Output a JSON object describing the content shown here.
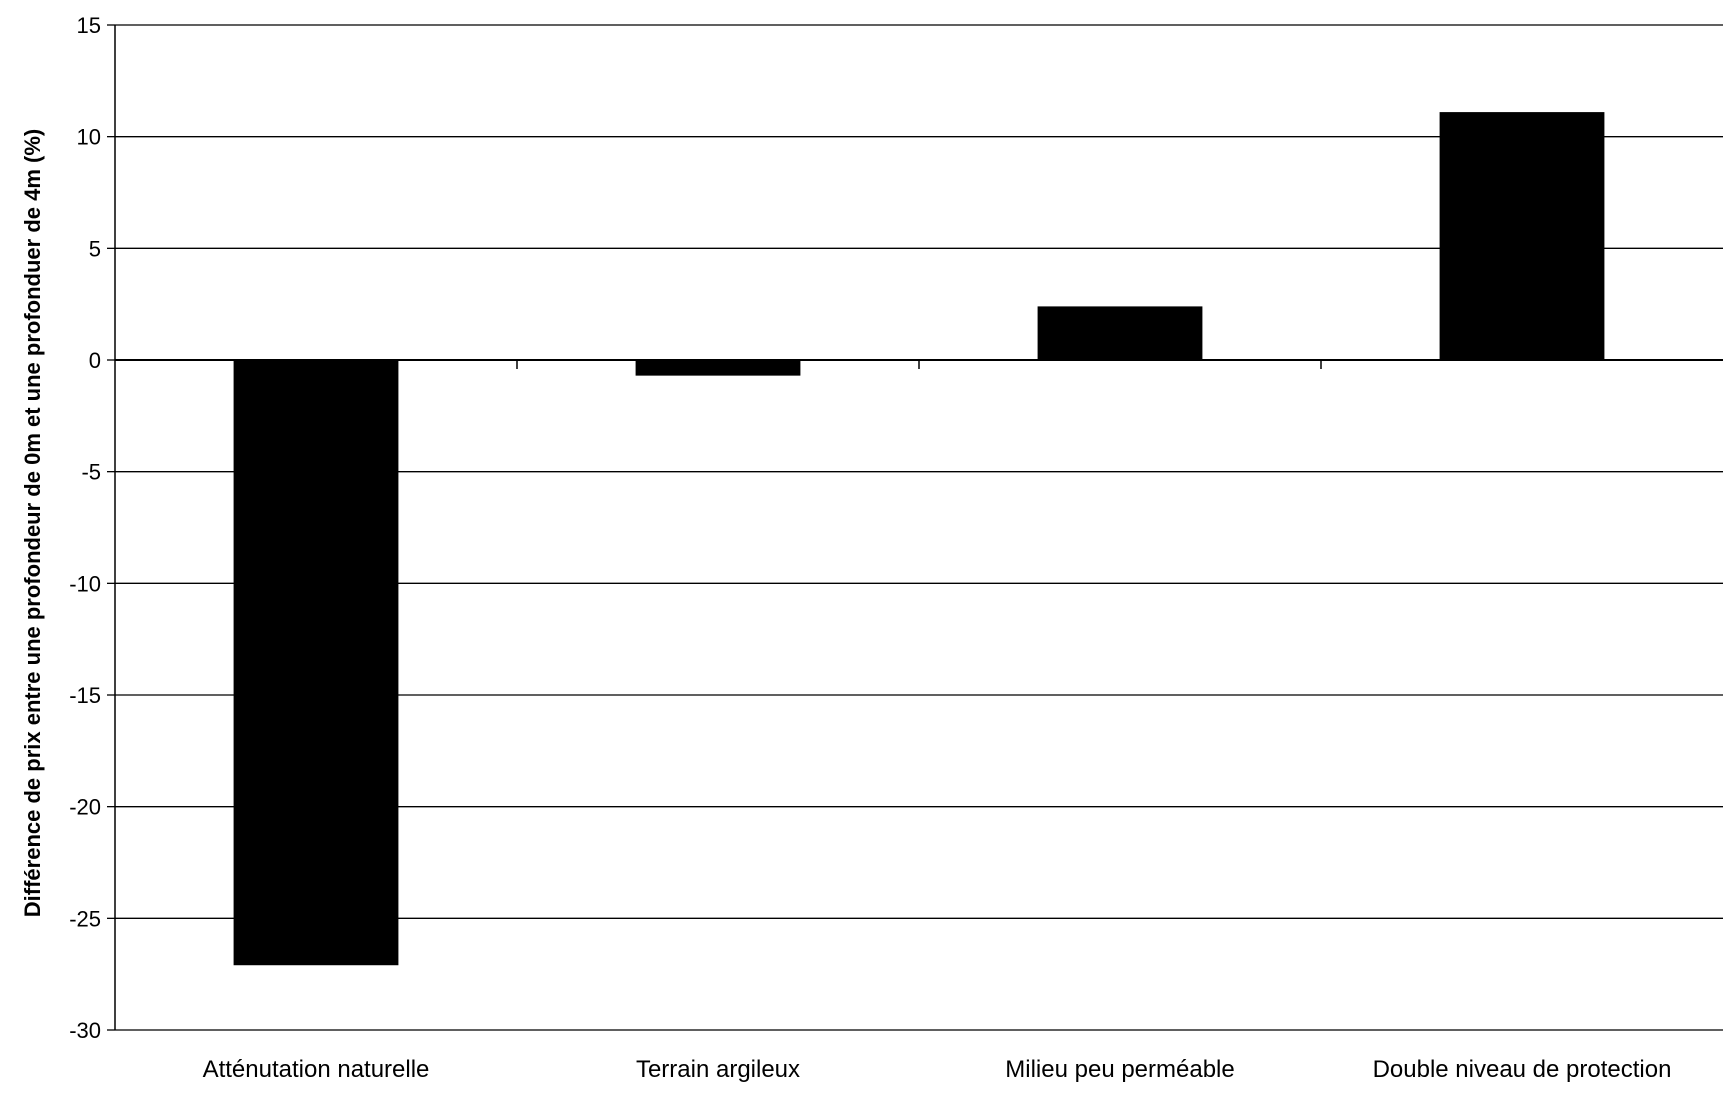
{
  "chart_data": {
    "type": "bar",
    "title": "",
    "xlabel": "",
    "ylabel": "Différence de prix entre une profondeur de 0m et une profonduer de 4m (%)",
    "categories": [
      "Atténutation naturelle",
      "Terrain argileux",
      "Milieu peu perméable",
      "Double niveau de protection"
    ],
    "values": [
      -27.1,
      -0.7,
      2.4,
      11.1
    ],
    "ylim": [
      -30,
      15
    ],
    "yticks": [
      15,
      10,
      5,
      0,
      -5,
      -10,
      -15,
      -20,
      -25,
      -30
    ],
    "grid": true,
    "legend": "none",
    "colors": {
      "bar": "#000000",
      "grid": "#000000",
      "axis": "#000000",
      "background": "#ffffff"
    }
  }
}
